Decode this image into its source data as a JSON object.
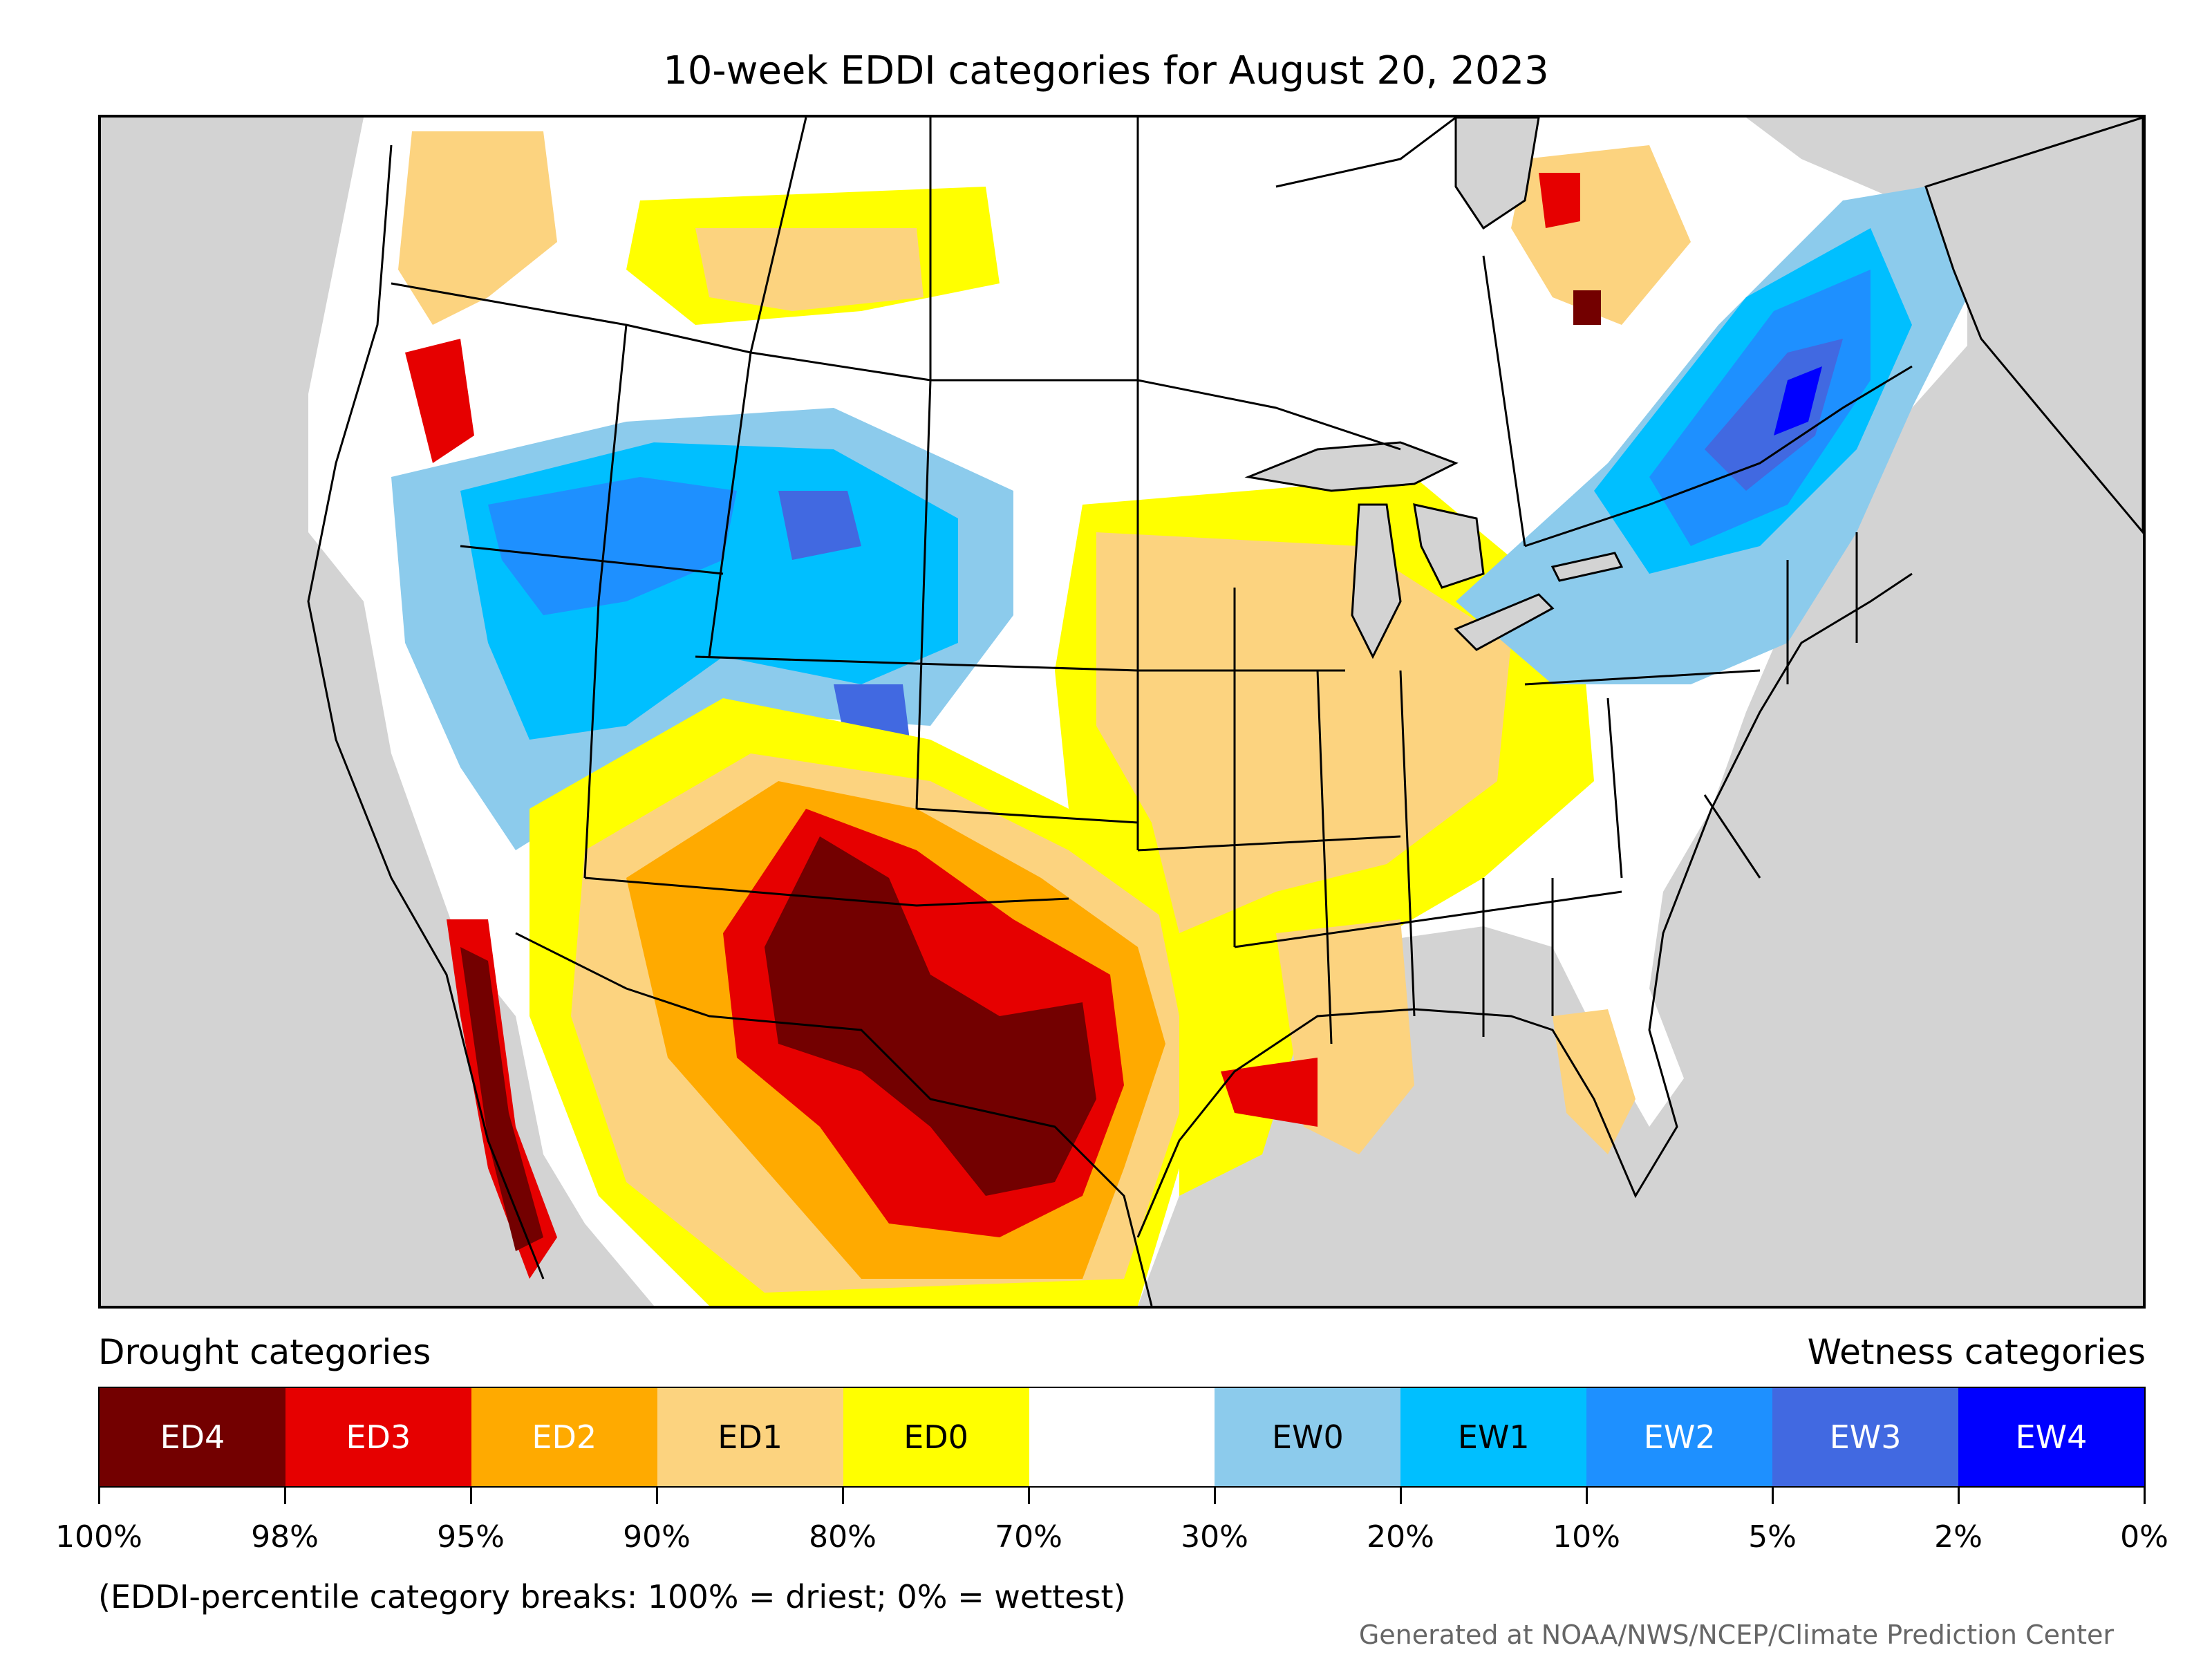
{
  "title": "10-week EDDI categories for August 20, 2023",
  "legend": {
    "drought_heading": "Drought categories",
    "wetness_heading": "Wetness categories",
    "categories": [
      {
        "label": "ED4",
        "color": "#730000",
        "text_color": "#ffffff"
      },
      {
        "label": "ED3",
        "color": "#e60000",
        "text_color": "#ffffff"
      },
      {
        "label": "ED2",
        "color": "#ffaa00",
        "text_color": "#ffffff"
      },
      {
        "label": "ED1",
        "color": "#fcd37f",
        "text_color": "#000000"
      },
      {
        "label": "ED0",
        "color": "#ffff00",
        "text_color": "#000000"
      },
      {
        "label": "",
        "color": "#ffffff",
        "text_color": "#000000"
      },
      {
        "label": "EW0",
        "color": "#8ccbec",
        "text_color": "#000000"
      },
      {
        "label": "EW1",
        "color": "#00bfff",
        "text_color": "#000000"
      },
      {
        "label": "EW2",
        "color": "#1e90ff",
        "text_color": "#ffffff"
      },
      {
        "label": "EW3",
        "color": "#4169e1",
        "text_color": "#ffffff"
      },
      {
        "label": "EW4",
        "color": "#0000ff",
        "text_color": "#ffffff"
      }
    ],
    "breaks": [
      "100%",
      "98%",
      "95%",
      "90%",
      "80%",
      "70%",
      "30%",
      "20%",
      "10%",
      "5%",
      "2%",
      "0%"
    ]
  },
  "note": "(EDDI-percentile category breaks: 100% = driest; 0% = wettest)",
  "credit": "Generated at NOAA/NWS/NCEP/Climate Prediction Center",
  "map": {
    "water_color": "#d3d3d3",
    "land_color": "#ffffff"
  }
}
